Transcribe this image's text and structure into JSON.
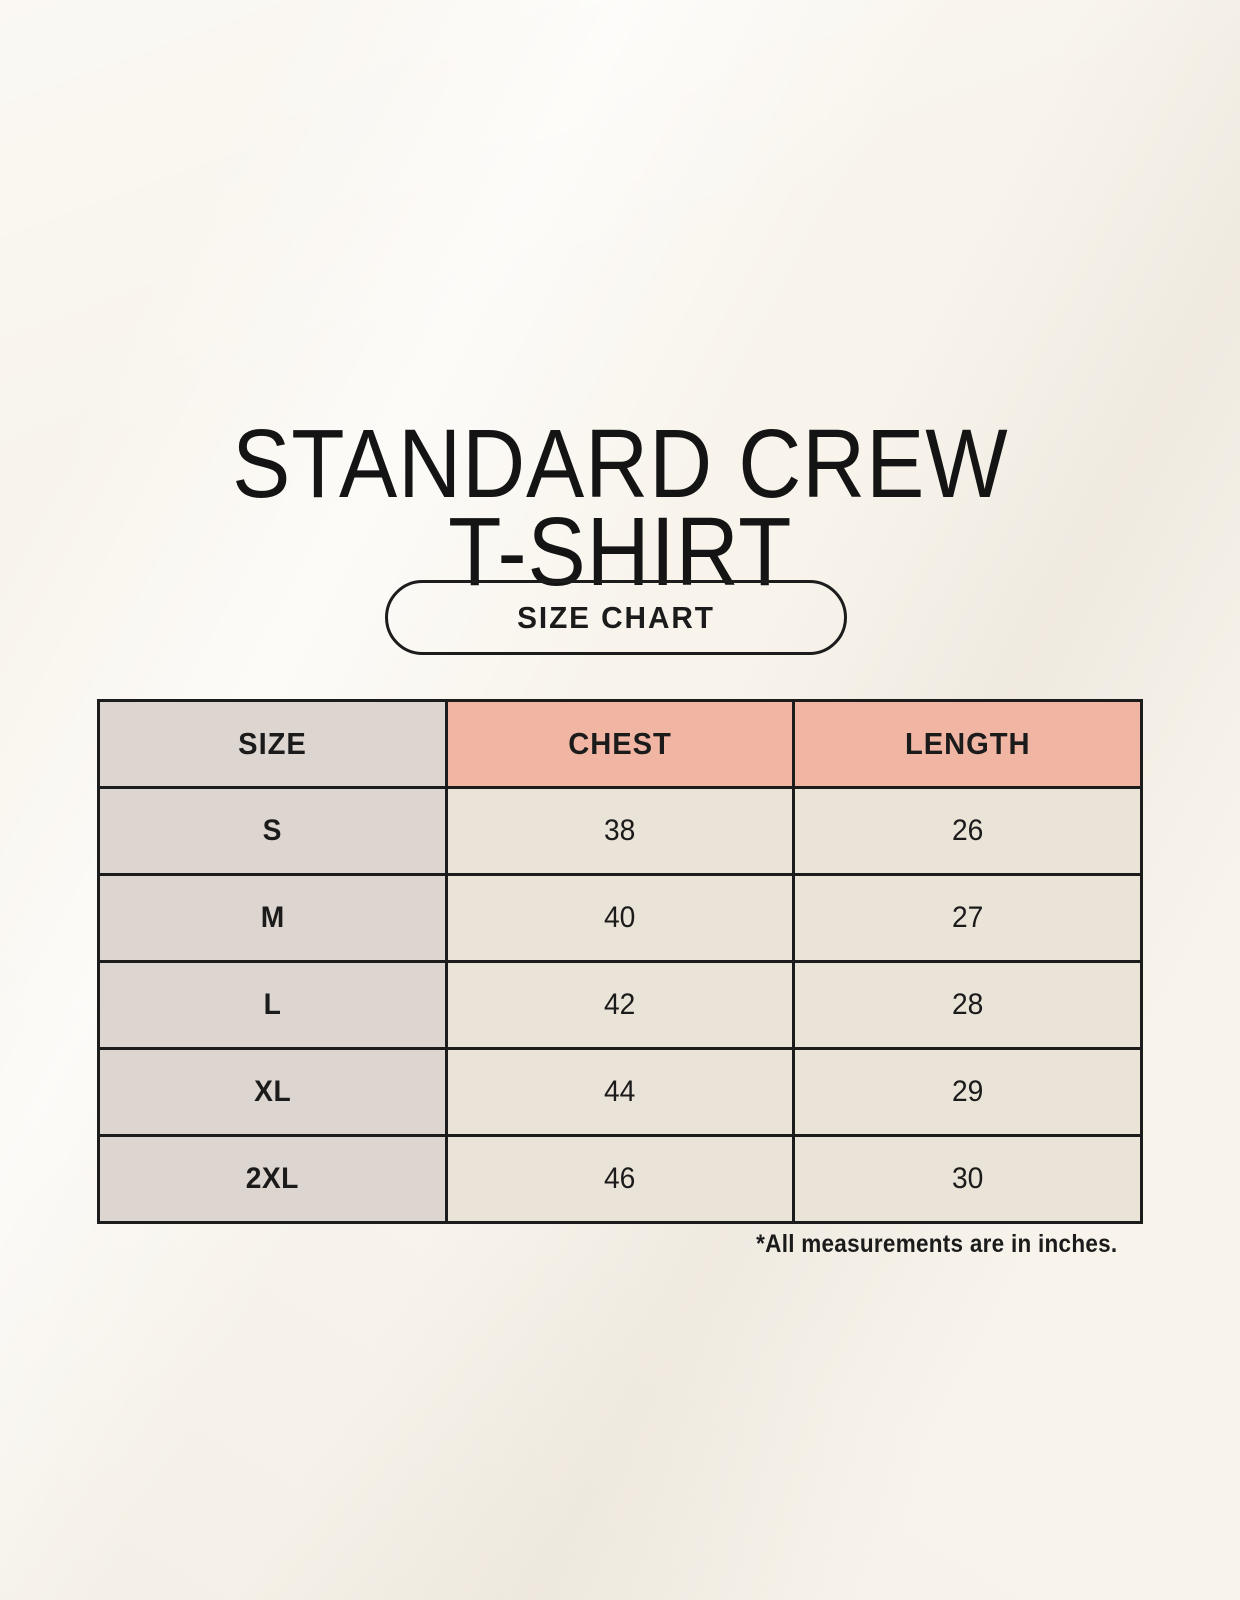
{
  "title": {
    "line1": "STANDARD CREW",
    "line2": "T-SHIRT"
  },
  "badge": {
    "label": "SIZE CHART"
  },
  "footnote": "*All measurements are in inches.",
  "colors": {
    "background": "#f8f4ec",
    "ink": "#1b1b1b",
    "header_accent_pink": "#f0b6a3",
    "size_column_gray": "#ddd6d0",
    "value_cell_beige": "#eae3d7",
    "table_border": "#1c1c1c"
  },
  "chart_data": {
    "type": "table",
    "title": "STANDARD CREW T-SHIRT",
    "subtitle": "SIZE CHART",
    "columns": [
      "SIZE",
      "CHEST",
      "LENGTH"
    ],
    "rows": [
      [
        "S",
        38,
        26
      ],
      [
        "M",
        40,
        27
      ],
      [
        "L",
        42,
        28
      ],
      [
        "XL",
        44,
        29
      ],
      [
        "2XL",
        46,
        30
      ]
    ],
    "units_note": "*All measurements are in inches.",
    "units": "inches"
  }
}
